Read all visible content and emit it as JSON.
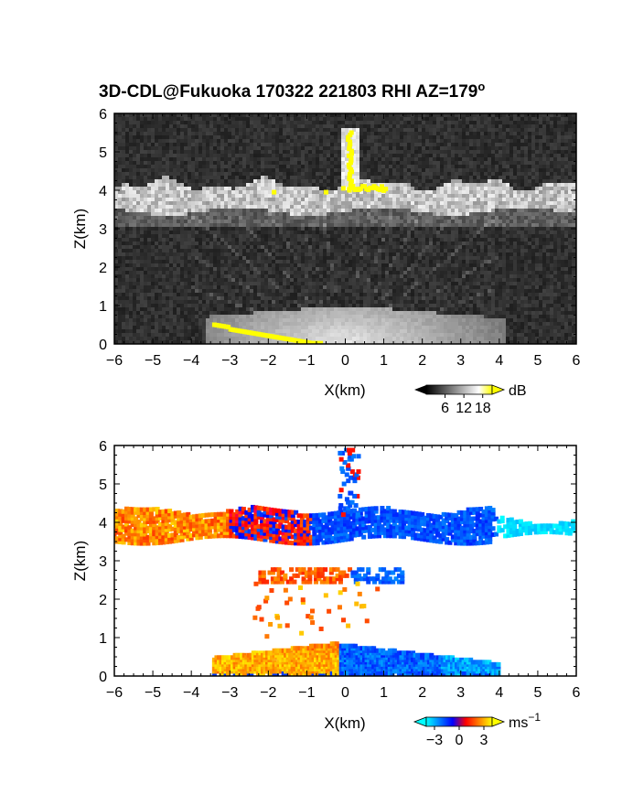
{
  "chart_data": [
    {
      "type": "heatmap",
      "title": "3D-CDL@Fukuoka 170322 221803 RHI AZ=179",
      "title_superscript": "o",
      "xlabel": "X(km)",
      "ylabel": "Z(km)",
      "xlim": [
        -6,
        6
      ],
      "ylim": [
        0,
        6
      ],
      "x_ticks": [
        "-6",
        "-5",
        "-4",
        "-3",
        "-2",
        "-1",
        "0",
        "1",
        "2",
        "3",
        "4",
        "5",
        "6"
      ],
      "y_ticks": [
        "0",
        "1",
        "2",
        "3",
        "4",
        "5",
        "6"
      ],
      "colorbar": {
        "unit": "dB",
        "tick_labels": [
          "6",
          "12",
          "18"
        ],
        "tick_values": [
          6,
          12,
          18
        ],
        "range": [
          0,
          21
        ],
        "colors": [
          "#000000",
          "#ffffff",
          "#ffff00"
        ]
      },
      "features": [
        {
          "name": "cloud layer",
          "z_range": [
            3.4,
            4.3
          ],
          "x_range": [
            -6,
            6
          ],
          "level_db": 12
        },
        {
          "name": "vertical column",
          "x": 0.2,
          "z_range": [
            4.0,
            5.5
          ],
          "level_db": 18
        },
        {
          "name": "near-ground return",
          "z_range": [
            0,
            1.0
          ],
          "x_range": [
            -3.5,
            4
          ],
          "level_db": 10
        }
      ]
    },
    {
      "type": "heatmap",
      "title": "",
      "xlabel": "X(km)",
      "ylabel": "Z(km)",
      "xlim": [
        -6,
        6
      ],
      "ylim": [
        0,
        6
      ],
      "x_ticks": [
        "-6",
        "-5",
        "-4",
        "-3",
        "-2",
        "-1",
        "0",
        "1",
        "2",
        "3",
        "4",
        "5",
        "6"
      ],
      "y_ticks": [
        "0",
        "1",
        "2",
        "3",
        "4",
        "5",
        "6"
      ],
      "colorbar": {
        "unit": "ms",
        "unit_superscript": "−1",
        "tick_labels": [
          "−3",
          "0",
          "3"
        ],
        "tick_values": [
          -3,
          0,
          3
        ],
        "range": [
          -4,
          4
        ],
        "colors": [
          "#00ffff",
          "#0000ff",
          "#ff0000",
          "#ffff00"
        ]
      },
      "features": [
        {
          "name": "cloud layer",
          "z_range": [
            3.5,
            4.4
          ],
          "x_range": [
            -6,
            6
          ],
          "velocity_left": 2,
          "velocity_right": -2
        },
        {
          "name": "vertical column",
          "x": 0.2,
          "z_range": [
            4.0,
            5.9
          ],
          "velocity": -1.5
        },
        {
          "name": "mid-level layer",
          "z_range": [
            2.3,
            2.9
          ],
          "x_range": [
            -2.2,
            1.6
          ]
        },
        {
          "name": "boundary layer",
          "z_range": [
            0,
            0.9
          ],
          "x_range": [
            -3.5,
            4
          ],
          "velocity_left": 3,
          "velocity_right": -2.5
        }
      ]
    }
  ]
}
